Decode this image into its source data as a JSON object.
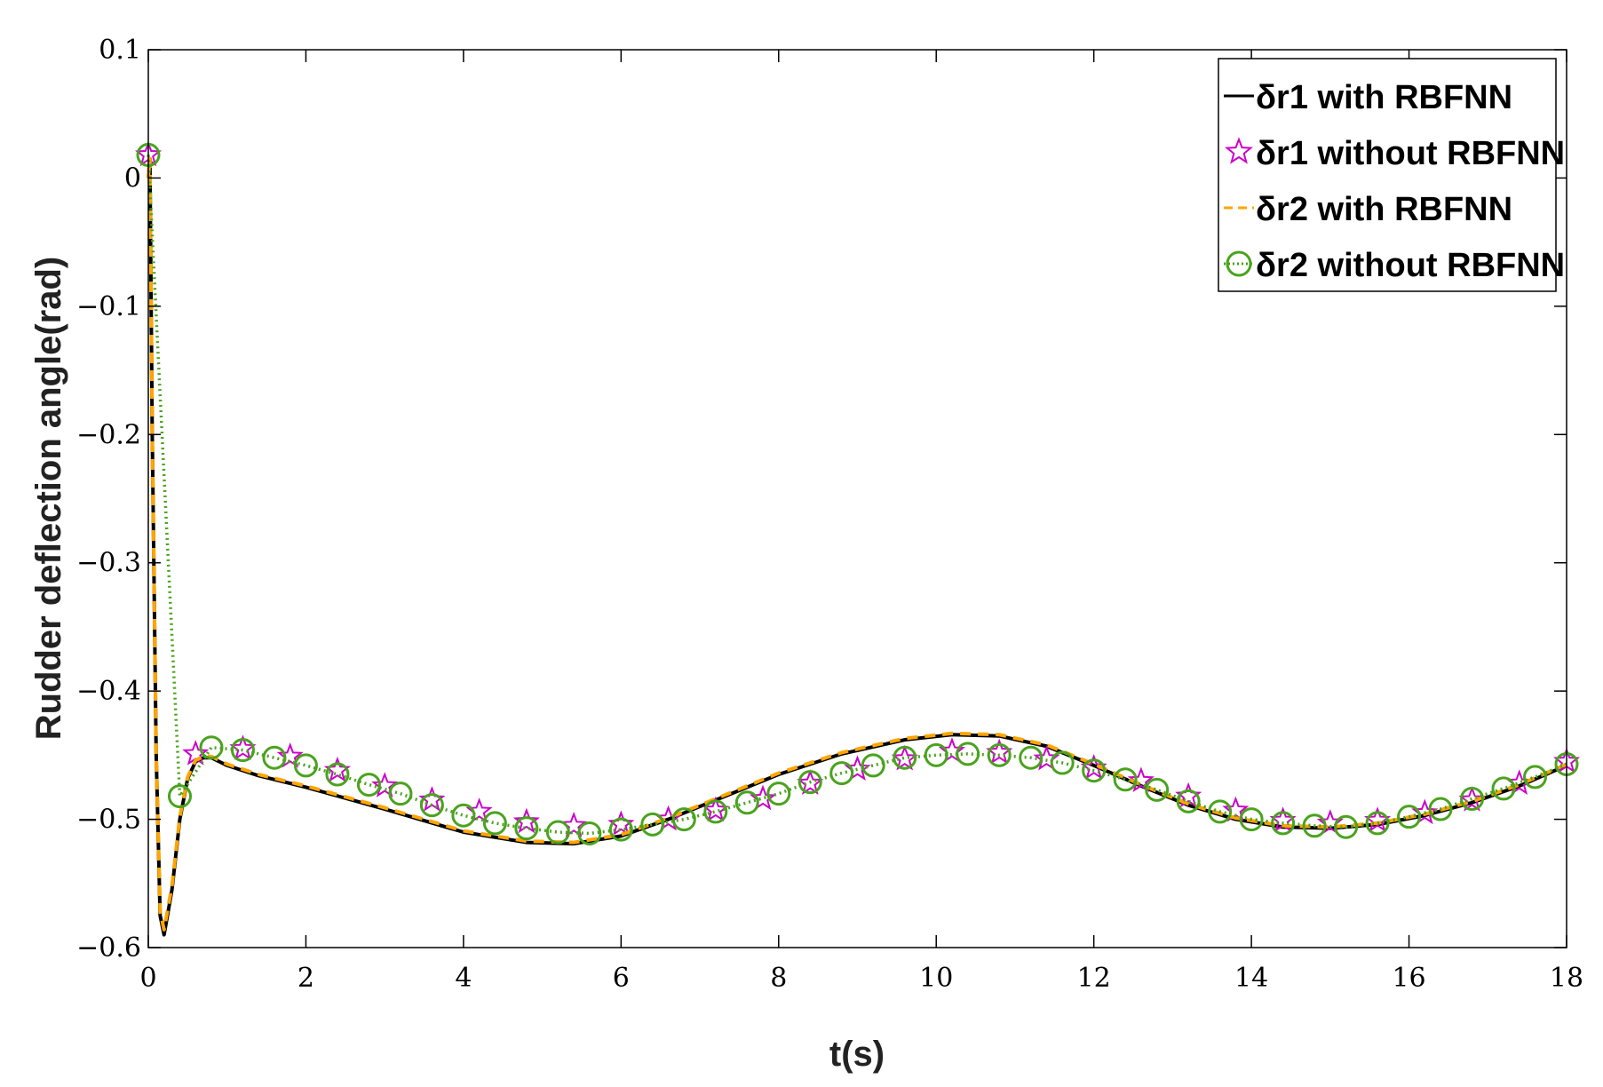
{
  "chart_data": {
    "type": "line",
    "xlabel": "t(s)",
    "ylabel": "Rudder deflection angle(rad)",
    "xlim": [
      0,
      18
    ],
    "ylim": [
      -0.6,
      0.1
    ],
    "xticks": [
      0,
      2,
      4,
      6,
      8,
      10,
      12,
      14,
      16,
      18
    ],
    "yticks": [
      0.1,
      0,
      -0.1,
      -0.2,
      -0.3,
      -0.4,
      -0.5,
      -0.6
    ],
    "xtick_labels": [
      "0",
      "2",
      "4",
      "6",
      "8",
      "10",
      "12",
      "14",
      "16",
      "18"
    ],
    "ytick_labels": [
      "0.1",
      "0",
      "−0.1",
      "−0.2",
      "−0.3",
      "−0.4",
      "−0.5",
      "−0.6"
    ],
    "grid": false,
    "legend_position": "top-right",
    "series": [
      {
        "name": "δr1 with RBFNN",
        "color": "#000000",
        "style": "solid",
        "marker": "none",
        "x": [
          0,
          0.02,
          0.05,
          0.1,
          0.15,
          0.2,
          0.3,
          0.4,
          0.5,
          0.6,
          0.7,
          0.8,
          1.0,
          1.4,
          2.0,
          3.0,
          4.0,
          4.8,
          5.4,
          6.0,
          6.6,
          7.2,
          8.0,
          8.8,
          9.6,
          10.2,
          10.8,
          11.4,
          12.0,
          12.6,
          13.2,
          13.8,
          14.4,
          15.0,
          15.6,
          16.2,
          16.8,
          17.4,
          18.0
        ],
        "y": [
          0.0,
          0.015,
          -0.2,
          -0.45,
          -0.575,
          -0.59,
          -0.555,
          -0.5,
          -0.468,
          -0.455,
          -0.452,
          -0.452,
          -0.458,
          -0.466,
          -0.475,
          -0.492,
          -0.51,
          -0.518,
          -0.519,
          -0.513,
          -0.5,
          -0.485,
          -0.465,
          -0.449,
          -0.438,
          -0.434,
          -0.435,
          -0.443,
          -0.458,
          -0.474,
          -0.489,
          -0.5,
          -0.506,
          -0.507,
          -0.504,
          -0.497,
          -0.487,
          -0.474,
          -0.458
        ]
      },
      {
        "name": "δr1 without RBFNN",
        "color": "#cc00cc",
        "style": "none",
        "marker": "star",
        "x": [
          0,
          0.6,
          1.2,
          1.8,
          2.4,
          3.0,
          3.6,
          4.2,
          4.8,
          5.4,
          6.0,
          6.6,
          7.2,
          7.8,
          8.4,
          9.0,
          9.6,
          10.2,
          10.8,
          11.4,
          12.0,
          12.6,
          13.2,
          13.8,
          14.4,
          15.0,
          15.6,
          16.2,
          16.8,
          17.4,
          18.0
        ],
        "y": [
          0.018,
          -0.449,
          -0.445,
          -0.451,
          -0.462,
          -0.474,
          -0.485,
          -0.494,
          -0.502,
          -0.505,
          -0.504,
          -0.5,
          -0.493,
          -0.484,
          -0.472,
          -0.461,
          -0.453,
          -0.447,
          -0.448,
          -0.453,
          -0.46,
          -0.47,
          -0.482,
          -0.493,
          -0.501,
          -0.503,
          -0.501,
          -0.495,
          -0.485,
          -0.472,
          -0.455
        ]
      },
      {
        "name": "δr2 with RBFNN",
        "color": "#ffa500",
        "style": "dashed",
        "marker": "none",
        "x": [
          0,
          0.02,
          0.05,
          0.1,
          0.15,
          0.2,
          0.3,
          0.4,
          0.5,
          0.6,
          0.7,
          0.8,
          1.0,
          1.4,
          2.0,
          3.0,
          4.0,
          4.8,
          5.4,
          6.0,
          6.6,
          7.2,
          8.0,
          8.8,
          9.6,
          10.2,
          10.8,
          11.4,
          12.0,
          12.6,
          13.2,
          13.8,
          14.4,
          15.0,
          15.6,
          16.2,
          16.8,
          17.4,
          18.0
        ],
        "y": [
          0.0,
          0.015,
          -0.2,
          -0.45,
          -0.572,
          -0.586,
          -0.552,
          -0.498,
          -0.467,
          -0.454,
          -0.451,
          -0.451,
          -0.457,
          -0.465,
          -0.474,
          -0.491,
          -0.509,
          -0.517,
          -0.518,
          -0.512,
          -0.499,
          -0.484,
          -0.464,
          -0.448,
          -0.437,
          -0.433,
          -0.434,
          -0.442,
          -0.457,
          -0.473,
          -0.488,
          -0.499,
          -0.505,
          -0.506,
          -0.503,
          -0.496,
          -0.486,
          -0.473,
          -0.457
        ]
      },
      {
        "name": "δr2 without RBFNN",
        "color": "#4aa31e",
        "style": "dotted",
        "marker": "circle",
        "x": [
          0,
          0.4,
          0.8,
          1.2,
          1.6,
          2.0,
          2.4,
          2.8,
          3.2,
          3.6,
          4.0,
          4.4,
          4.8,
          5.2,
          5.6,
          6.0,
          6.4,
          6.8,
          7.2,
          7.6,
          8.0,
          8.4,
          8.8,
          9.2,
          9.6,
          10.0,
          10.4,
          10.8,
          11.2,
          11.6,
          12.0,
          12.4,
          12.8,
          13.2,
          13.6,
          14.0,
          14.4,
          14.8,
          15.2,
          15.6,
          16.0,
          16.4,
          16.8,
          17.2,
          17.6,
          18.0
        ],
        "y": [
          0.018,
          -0.482,
          -0.444,
          -0.446,
          -0.452,
          -0.458,
          -0.465,
          -0.473,
          -0.48,
          -0.489,
          -0.497,
          -0.503,
          -0.507,
          -0.51,
          -0.511,
          -0.508,
          -0.504,
          -0.5,
          -0.494,
          -0.487,
          -0.48,
          -0.471,
          -0.464,
          -0.458,
          -0.452,
          -0.45,
          -0.449,
          -0.45,
          -0.452,
          -0.456,
          -0.462,
          -0.469,
          -0.477,
          -0.486,
          -0.494,
          -0.5,
          -0.503,
          -0.505,
          -0.506,
          -0.503,
          -0.498,
          -0.492,
          -0.484,
          -0.476,
          -0.467,
          -0.457
        ]
      }
    ]
  }
}
